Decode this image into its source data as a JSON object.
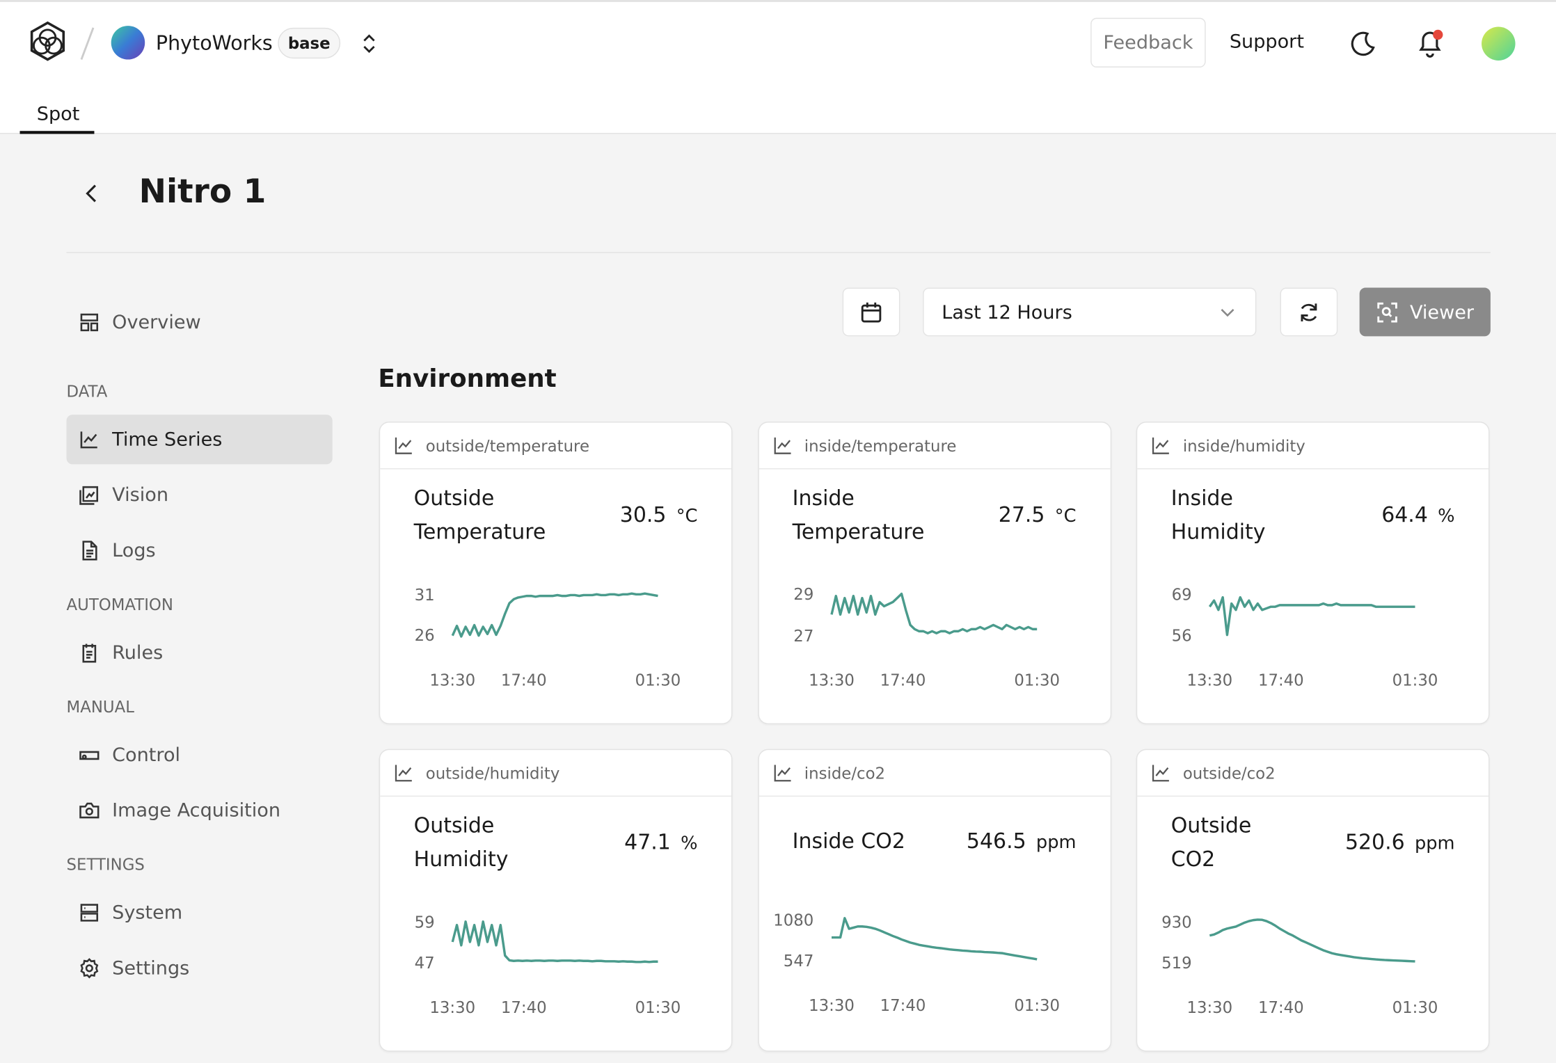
{
  "header": {
    "brand": "PhytoWorks",
    "badge": "base",
    "actions": [
      "Feedback",
      "Support"
    ]
  },
  "tabs": [
    "Spot"
  ],
  "page": {
    "title": "Nitro 1"
  },
  "sidebar": {
    "overview": "Overview",
    "sections": [
      {
        "label": "DATA",
        "items": [
          "Time Series",
          "Vision",
          "Logs"
        ]
      },
      {
        "label": "AUTOMATION",
        "items": [
          "Rules"
        ]
      },
      {
        "label": "MANUAL",
        "items": [
          "Control",
          "Image Acquisition"
        ]
      },
      {
        "label": "SETTINGS",
        "items": [
          "System",
          "Settings"
        ]
      }
    ]
  },
  "toolbar": {
    "range": "Last 12 Hours",
    "viewer": "Viewer"
  },
  "section_title": "Environment",
  "cards": [
    {
      "topic": "outside/temperature",
      "title": "Outside Temperature",
      "value": 30.5,
      "unit": "°C",
      "chart": {
        "type": "line",
        "color": "#4a9b8c",
        "xlim": [
          "13:30",
          "01:30"
        ],
        "xticks": [
          "13:30",
          "17:40",
          "01:30"
        ],
        "ylim": [
          24.4,
          32.6
        ],
        "yticks": [
          31,
          26
        ],
        "values": [
          25.9,
          27.1,
          25.8,
          27.0,
          26.0,
          27.2,
          25.9,
          27.0,
          26.1,
          27.2,
          26.0,
          27.1,
          28.6,
          29.9,
          30.4,
          30.6,
          30.7,
          30.8,
          30.8,
          30.7,
          30.8,
          30.8,
          30.8,
          30.8,
          30.9,
          30.8,
          30.8,
          30.9,
          30.9,
          30.8,
          30.9,
          30.9,
          30.9,
          31.0,
          30.9,
          30.9,
          31.0,
          31.0,
          30.9,
          31.0,
          31.0,
          31.1,
          31.0,
          31.0,
          31.1,
          31.0,
          30.9,
          30.8
        ]
      }
    },
    {
      "topic": "inside/temperature",
      "title": "Inside Temperature",
      "value": 27.5,
      "unit": "°C",
      "chart": {
        "type": "line",
        "color": "#4a9b8c",
        "xlim": [
          "13:30",
          "01:30"
        ],
        "xticks": [
          "13:30",
          "17:40",
          "01:30"
        ],
        "ylim": [
          26.4,
          29.6
        ],
        "yticks": [
          29,
          27
        ],
        "values": [
          28.0,
          28.9,
          28.0,
          28.8,
          28.1,
          28.9,
          28.0,
          28.8,
          28.1,
          28.9,
          28.0,
          28.6,
          28.4,
          28.5,
          28.6,
          28.8,
          29.0,
          28.2,
          27.5,
          27.3,
          27.2,
          27.2,
          27.1,
          27.2,
          27.1,
          27.2,
          27.2,
          27.1,
          27.2,
          27.2,
          27.3,
          27.2,
          27.3,
          27.3,
          27.4,
          27.3,
          27.4,
          27.5,
          27.4,
          27.3,
          27.5,
          27.4,
          27.3,
          27.4,
          27.3,
          27.4,
          27.3,
          27.3
        ]
      }
    },
    {
      "topic": "inside/humidity",
      "title": "Inside Humidity",
      "value": 64.4,
      "unit": "%",
      "chart": {
        "type": "line",
        "color": "#4a9b8c",
        "xlim": [
          "13:30",
          "01:30"
        ],
        "xticks": [
          "13:30",
          "17:40",
          "01:30"
        ],
        "ylim": [
          51.9,
          73.1
        ],
        "yticks": [
          69,
          56
        ],
        "values": [
          65,
          67,
          64,
          68,
          56,
          66,
          64,
          68,
          65,
          67,
          64,
          66,
          64,
          64.5,
          65,
          65,
          65.5,
          65.5,
          65.5,
          65.5,
          65.5,
          65.5,
          65.5,
          65.5,
          65.5,
          65.5,
          66,
          65.5,
          65.5,
          66,
          65.5,
          65.5,
          65.5,
          65.5,
          65.5,
          65.5,
          65.5,
          65.5,
          65,
          65,
          65,
          65,
          65,
          65,
          65,
          65,
          65,
          65
        ]
      }
    },
    {
      "topic": "outside/humidity",
      "title": "Outside Humidity",
      "value": 47.1,
      "unit": "%",
      "chart": {
        "type": "line",
        "color": "#4a9b8c",
        "xlim": [
          "13:30",
          "01:30"
        ],
        "xticks": [
          "13:30",
          "17:40",
          "01:30"
        ],
        "ylim": [
          43.2,
          62.8
        ],
        "yticks": [
          59,
          47
        ],
        "values": [
          53,
          58,
          52,
          59,
          53,
          58,
          52,
          59,
          53,
          58,
          52,
          58,
          49,
          47.6,
          47.4,
          47.5,
          47.4,
          47.5,
          47.4,
          47.5,
          47.5,
          47.4,
          47.5,
          47.5,
          47.4,
          47.5,
          47.5,
          47.5,
          47.4,
          47.5,
          47.4,
          47.4,
          47.3,
          47.4,
          47.4,
          47.3,
          47.3,
          47.3,
          47.2,
          47.3,
          47.2,
          47.2,
          47.1,
          47.1,
          47.2,
          47.1,
          47.2,
          47.2
        ]
      }
    },
    {
      "topic": "inside/co2",
      "title": "Inside CO2",
      "value": 546.5,
      "unit": "ppm",
      "chart": {
        "type": "line",
        "color": "#4a9b8c",
        "xlim": [
          "13:30",
          "01:30"
        ],
        "xticks": [
          "13:30",
          "17:40",
          "01:30"
        ],
        "ylim": [
          378,
          1249
        ],
        "yticks": [
          1080,
          547
        ],
        "values": [
          846,
          846,
          846,
          1100,
          960,
          975,
          990,
          990,
          985,
          975,
          960,
          940,
          915,
          890,
          865,
          845,
          820,
          800,
          780,
          765,
          750,
          740,
          730,
          720,
          712,
          705,
          698,
          690,
          685,
          680,
          675,
          670,
          665,
          662,
          660,
          655,
          652,
          650,
          645,
          640,
          630,
          620,
          610,
          600,
          590,
          580,
          570,
          560
        ]
      }
    },
    {
      "topic": "outside/co2",
      "title": "Outside CO2",
      "value": 520.6,
      "unit": "ppm",
      "chart": {
        "type": "line",
        "color": "#4a9b8c",
        "xlim": [
          "13:30",
          "01:30"
        ],
        "xticks": [
          "13:30",
          "17:40",
          "01:30"
        ],
        "ylim": [
          389,
          1060
        ],
        "yticks": [
          930,
          519
        ],
        "values": [
          790,
          800,
          820,
          845,
          860,
          870,
          880,
          900,
          920,
          935,
          945,
          950,
          948,
          935,
          915,
          890,
          860,
          835,
          810,
          790,
          765,
          740,
          720,
          700,
          680,
          660,
          640,
          625,
          610,
          600,
          592,
          585,
          578,
          570,
          565,
          560,
          556,
          552,
          548,
          545,
          542,
          540,
          538,
          536,
          534,
          532,
          530,
          528
        ]
      }
    }
  ]
}
